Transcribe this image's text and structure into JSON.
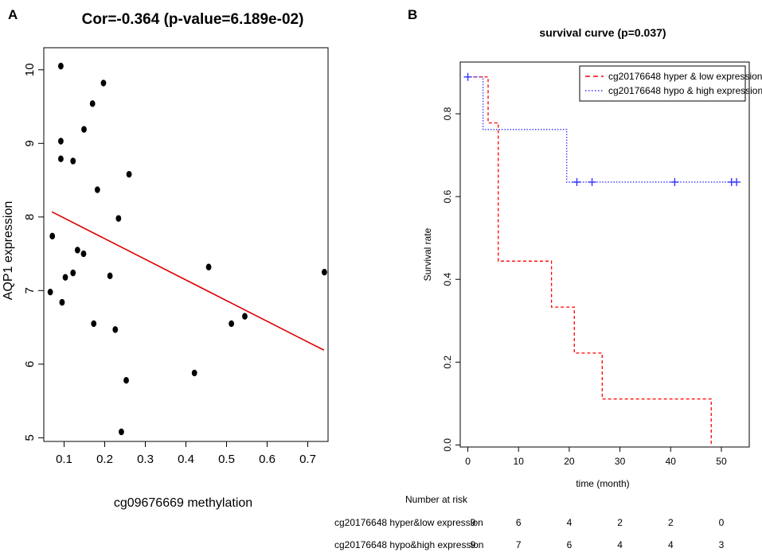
{
  "chart_data": [
    {
      "panel": "A",
      "type": "scatter",
      "title": "Cor=-0.364 (p-value=6.189e-02)",
      "xlabel": "cg09676669 methylation",
      "ylabel": "AQP1 expression",
      "xlim": [
        0.05,
        0.75
      ],
      "ylim": [
        4.95,
        10.3
      ],
      "xticks": [
        "0.1",
        "0.2",
        "0.3",
        "0.4",
        "0.5",
        "0.6",
        "0.7"
      ],
      "yticks": [
        "5",
        "6",
        "7",
        "8",
        "9",
        "10"
      ],
      "points": [
        {
          "x": 0.092,
          "y": 10.05
        },
        {
          "x": 0.197,
          "y": 9.82
        },
        {
          "x": 0.17,
          "y": 9.54
        },
        {
          "x": 0.149,
          "y": 9.19
        },
        {
          "x": 0.092,
          "y": 9.03
        },
        {
          "x": 0.092,
          "y": 8.79
        },
        {
          "x": 0.122,
          "y": 8.76
        },
        {
          "x": 0.26,
          "y": 8.58
        },
        {
          "x": 0.182,
          "y": 8.37
        },
        {
          "x": 0.234,
          "y": 7.98
        },
        {
          "x": 0.071,
          "y": 7.74
        },
        {
          "x": 0.133,
          "y": 7.55
        },
        {
          "x": 0.148,
          "y": 7.5
        },
        {
          "x": 0.456,
          "y": 7.32
        },
        {
          "x": 0.741,
          "y": 7.25
        },
        {
          "x": 0.122,
          "y": 7.24
        },
        {
          "x": 0.103,
          "y": 7.18
        },
        {
          "x": 0.213,
          "y": 7.2
        },
        {
          "x": 0.066,
          "y": 6.98
        },
        {
          "x": 0.095,
          "y": 6.84
        },
        {
          "x": 0.545,
          "y": 6.65
        },
        {
          "x": 0.173,
          "y": 6.55
        },
        {
          "x": 0.512,
          "y": 6.55
        },
        {
          "x": 0.226,
          "y": 6.47
        },
        {
          "x": 0.421,
          "y": 5.88
        },
        {
          "x": 0.253,
          "y": 5.78
        },
        {
          "x": 0.241,
          "y": 5.08
        }
      ],
      "fit_line": {
        "x": [
          0.07,
          0.74
        ],
        "y": [
          8.07,
          6.19
        ],
        "color": "#e00000"
      }
    },
    {
      "panel": "B",
      "type": "line",
      "title": "survival curve (p=0.037)",
      "xlabel": "time (month)",
      "ylabel": "Survival rate",
      "xlim": [
        -1.5,
        55.5
      ],
      "ylim": [
        -0.005,
        0.925
      ],
      "xticks": [
        "0",
        "10",
        "20",
        "30",
        "40",
        "50"
      ],
      "yticks": [
        "0.0",
        "0.2",
        "0.4",
        "0.6",
        "0.8"
      ],
      "series": [
        {
          "name": "cg20176648 hyper & low expression",
          "color": "#ff0000",
          "dash": "dashed",
          "steps": [
            {
              "t": 0,
              "s": 0.889
            },
            {
              "t": 4,
              "s": 0.778
            },
            {
              "t": 6,
              "s": 0.444
            },
            {
              "t": 16.5,
              "s": 0.333
            },
            {
              "t": 21,
              "s": 0.222
            },
            {
              "t": 26.5,
              "s": 0.111
            },
            {
              "t": 48,
              "s": 0.0
            }
          ],
          "censored": []
        },
        {
          "name": "cg20176648 hypo & high expression",
          "color": "#3333ff",
          "dash": "dotted",
          "steps": [
            {
              "t": 0,
              "s": 0.889
            },
            {
              "t": 3,
              "s": 0.762
            },
            {
              "t": 19.5,
              "s": 0.635
            },
            {
              "t": 53,
              "s": 0.635
            }
          ],
          "censored": [
            {
              "t": 0,
              "s": 0.889
            },
            {
              "t": 21.5,
              "s": 0.635
            },
            {
              "t": 24.5,
              "s": 0.635
            },
            {
              "t": 40.8,
              "s": 0.635
            },
            {
              "t": 52,
              "s": 0.635
            },
            {
              "t": 53,
              "s": 0.635
            }
          ]
        }
      ]
    }
  ],
  "panel_labels": {
    "a": "A",
    "b": "B"
  },
  "risk_table": {
    "title": "Number at risk",
    "rows": [
      {
        "label": "cg20176648 hyper&low expression",
        "values": [
          "9",
          "6",
          "4",
          "2",
          "2",
          "0"
        ]
      },
      {
        "label": "cg20176648 hypo&high expression",
        "values": [
          "9",
          "7",
          "6",
          "4",
          "4",
          "3"
        ]
      }
    ]
  },
  "colors": {
    "fit_line": "#e00000",
    "hyper_low": "#ff0000",
    "hypo_high": "#3333ff"
  }
}
